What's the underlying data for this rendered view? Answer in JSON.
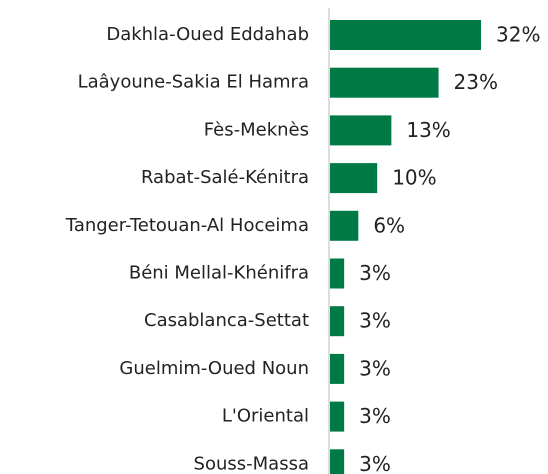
{
  "chart_data": {
    "type": "bar",
    "orientation": "horizontal",
    "categories": [
      "Dakhla-Oued Eddahab",
      "Laâyoune-Sakia El Hamra",
      "Fès-Meknès",
      "Rabat-Salé-Kénitra",
      "Tanger-Tetouan-Al Hoceima",
      "Béni Mellal-Khénifra",
      "Casablanca-Settat",
      "Guelmim-Oued Noun",
      "L'Oriental",
      "Souss-Massa"
    ],
    "values": [
      32,
      23,
      13,
      10,
      6,
      3,
      3,
      3,
      3,
      3
    ],
    "value_labels": [
      "32%",
      "23%",
      "13%",
      "10%",
      "6%",
      "3%",
      "3%",
      "3%",
      "3%",
      "3%"
    ],
    "color": "#007a45"
  }
}
